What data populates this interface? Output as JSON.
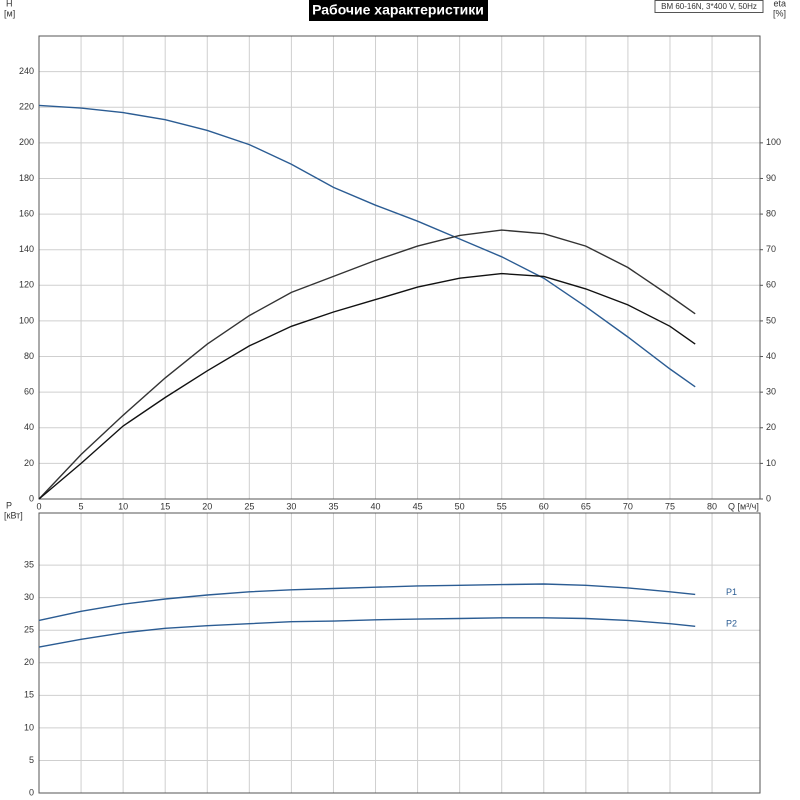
{
  "chart_data": [
    {
      "type": "line",
      "title": "Рабочие характеристики",
      "subtitle": "BM 60-16N, 3*400 V, 50Hz",
      "xlabel": "Q [м³/ч]",
      "ylabel": "H",
      "yunit": "[м]",
      "y2label": "eta",
      "y2unit": "[%]",
      "x": [
        0,
        5,
        10,
        15,
        20,
        25,
        30,
        35,
        40,
        45,
        50,
        55,
        60,
        65,
        70,
        75,
        78
      ],
      "series": [
        {
          "color": "#2b5c93",
          "values": [
            221,
            219.5,
            217,
            213,
            207,
            199,
            188,
            175,
            165,
            156,
            146,
            136,
            124,
            108,
            91,
            73,
            63
          ]
        },
        {
          "color": "#333333",
          "axis": "y2",
          "values": [
            0,
            12.5,
            23.5,
            34,
            43.5,
            51.5,
            58,
            62.5,
            67,
            71,
            74,
            75.5,
            74.5,
            71,
            65,
            57,
            52
          ]
        },
        {
          "color": "#111111",
          "axis": "y2",
          "values": [
            0,
            10,
            20.5,
            28.5,
            36,
            43,
            48.5,
            52.5,
            56,
            59.5,
            62,
            63.3,
            62.5,
            59,
            54.5,
            48.5,
            43.5
          ]
        }
      ],
      "xlim": [
        0,
        85.7
      ],
      "xticks": [
        0,
        5,
        10,
        15,
        20,
        25,
        30,
        35,
        40,
        45,
        50,
        55,
        60,
        65,
        70,
        75,
        80
      ],
      "ylim": [
        0,
        260
      ],
      "yticks": [
        0,
        20,
        40,
        60,
        80,
        100,
        120,
        140,
        160,
        180,
        200,
        220,
        240
      ],
      "y2lim": [
        0,
        130
      ],
      "y2ticks": [
        0,
        10,
        20,
        30,
        40,
        50,
        60,
        70,
        80,
        90,
        100
      ],
      "grid": true
    },
    {
      "type": "line",
      "ylabel": "P",
      "yunit": "[кВт]",
      "x": [
        0,
        5,
        10,
        15,
        20,
        25,
        30,
        35,
        40,
        45,
        50,
        55,
        60,
        65,
        70,
        75,
        78
      ],
      "series": [
        {
          "name": "P1",
          "color": "#2b5c93",
          "values": [
            26.5,
            27.9,
            29,
            29.8,
            30.4,
            30.9,
            31.2,
            31.4,
            31.6,
            31.8,
            31.9,
            32,
            32.1,
            31.9,
            31.5,
            30.9,
            30.5
          ]
        },
        {
          "name": "P2",
          "color": "#2b5c93",
          "values": [
            22.4,
            23.6,
            24.6,
            25.3,
            25.7,
            26,
            26.3,
            26.4,
            26.6,
            26.7,
            26.8,
            26.9,
            26.9,
            26.8,
            26.5,
            26,
            25.6
          ]
        }
      ],
      "xlim": [
        0,
        85.7
      ],
      "xticks": [
        0,
        5,
        10,
        15,
        20,
        25,
        30,
        35,
        40,
        45,
        50,
        55,
        60,
        65,
        70,
        75,
        80
      ],
      "ylim": [
        0,
        43
      ],
      "yticks": [
        0,
        5,
        10,
        15,
        20,
        25,
        30,
        35
      ],
      "grid": true
    }
  ]
}
